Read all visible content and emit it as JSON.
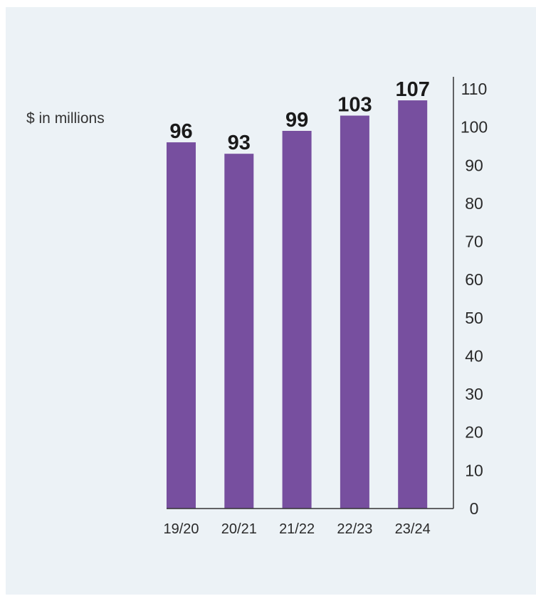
{
  "chart_data": {
    "type": "bar",
    "ylabel": "$ in millions",
    "categories": [
      "19/20",
      "20/21",
      "21/22",
      "22/23",
      "23/24"
    ],
    "values": [
      96,
      93,
      99,
      103,
      107
    ],
    "data_labels": [
      "96",
      "93",
      "99",
      "103",
      "107"
    ],
    "ylim": [
      0,
      110
    ],
    "yticks": [
      0,
      10,
      20,
      30,
      40,
      50,
      60,
      70,
      80,
      90,
      100,
      110
    ],
    "y_axis_position": "right",
    "grid": false,
    "colors": {
      "bar": "#774f9f",
      "axis": "#333333",
      "background": "#ecf2f6"
    }
  }
}
